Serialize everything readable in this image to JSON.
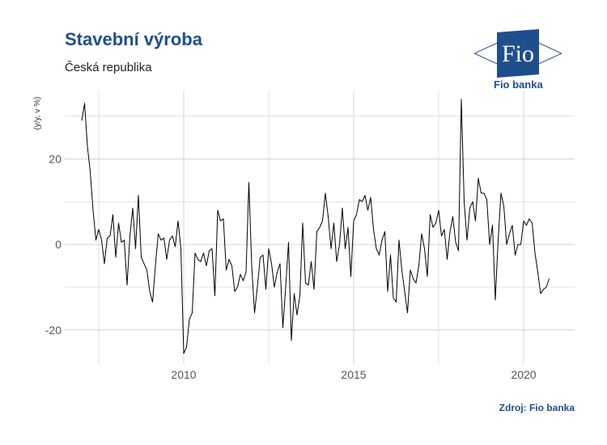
{
  "header": {
    "title": "Stavební výroba",
    "subtitle": "Česká republika"
  },
  "logo": {
    "mark_text": "Fio",
    "name": "Fio banka"
  },
  "footer": {
    "source": "Zdroj: Fio banka"
  },
  "colors": {
    "brand": "#1f4e8c",
    "line": "#000000",
    "grid": "#d4d4d4"
  },
  "chart_data": {
    "type": "line",
    "title": "Stavební výroba",
    "subtitle": "Česká republika",
    "ylabel": "(y/y, v %)",
    "xlabel": "",
    "x_ticks": [
      "2010",
      "2015",
      "2020"
    ],
    "y_ticks": [
      "-20",
      "0",
      "20"
    ],
    "xlim": [
      2006.5,
      2021.5
    ],
    "ylim": [
      -28,
      36
    ],
    "grid": true,
    "series": [
      {
        "x": [
          2007.0,
          2007.083,
          2007.167,
          2007.25,
          2007.333,
          2007.417,
          2007.5,
          2007.583,
          2007.667,
          2007.75,
          2007.833,
          2007.917,
          2008.0,
          2008.083,
          2008.167,
          2008.25,
          2008.333,
          2008.417,
          2008.5,
          2008.583,
          2008.667,
          2008.75,
          2008.833,
          2008.917,
          2009.0,
          2009.083,
          2009.167,
          2009.25,
          2009.333,
          2009.417,
          2009.5,
          2009.583,
          2009.667,
          2009.75,
          2009.833,
          2009.917,
          2010.0,
          2010.083,
          2010.167,
          2010.25,
          2010.333,
          2010.417,
          2010.5,
          2010.583,
          2010.667,
          2010.75,
          2010.833,
          2010.917,
          2011.0,
          2011.083,
          2011.167,
          2011.25,
          2011.333,
          2011.417,
          2011.5,
          2011.583,
          2011.667,
          2011.75,
          2011.833,
          2011.917,
          2012.0,
          2012.083,
          2012.167,
          2012.25,
          2012.333,
          2012.417,
          2012.5,
          2012.583,
          2012.667,
          2012.75,
          2012.833,
          2012.917,
          2013.0,
          2013.083,
          2013.167,
          2013.25,
          2013.333,
          2013.417,
          2013.5,
          2013.583,
          2013.667,
          2013.75,
          2013.833,
          2013.917,
          2014.0,
          2014.083,
          2014.167,
          2014.25,
          2014.333,
          2014.417,
          2014.5,
          2014.583,
          2014.667,
          2014.75,
          2014.833,
          2014.917,
          2015.0,
          2015.083,
          2015.167,
          2015.25,
          2015.333,
          2015.417,
          2015.5,
          2015.583,
          2015.667,
          2015.75,
          2015.833,
          2015.917,
          2016.0,
          2016.083,
          2016.167,
          2016.25,
          2016.333,
          2016.417,
          2016.5,
          2016.583,
          2016.667,
          2016.75,
          2016.833,
          2016.917,
          2017.0,
          2017.083,
          2017.167,
          2017.25,
          2017.333,
          2017.417,
          2017.5,
          2017.583,
          2017.667,
          2017.75,
          2017.833,
          2017.917,
          2018.0,
          2018.083,
          2018.167,
          2018.25,
          2018.333,
          2018.417,
          2018.5,
          2018.583,
          2018.667,
          2018.75,
          2018.833,
          2018.917,
          2019.0,
          2019.083,
          2019.167,
          2019.25,
          2019.333,
          2019.417,
          2019.5,
          2019.583,
          2019.667,
          2019.75,
          2019.833,
          2019.917,
          2020.0,
          2020.083,
          2020.167,
          2020.25,
          2020.333,
          2020.417,
          2020.5,
          2020.583,
          2020.667,
          2020.75
        ],
        "values": [
          29.0,
          33.0,
          23.0,
          17.0,
          8.0,
          1.0,
          3.5,
          1.0,
          -4.5,
          1.5,
          2.0,
          7.0,
          -3.0,
          5.0,
          0.5,
          1.0,
          -9.5,
          2.0,
          8.5,
          -1.0,
          11.5,
          -3.0,
          -4.5,
          -6.0,
          -11.0,
          -13.5,
          -5.0,
          2.5,
          1.0,
          1.5,
          -3.5,
          1.0,
          2.0,
          -0.5,
          5.5,
          -1.0,
          -25.5,
          -24.0,
          -17.5,
          -16.0,
          -2.0,
          -3.5,
          -4.0,
          -2.0,
          -5.0,
          -1.5,
          -1.0,
          -12.0,
          8.0,
          5.5,
          6.0,
          -6.0,
          -3.5,
          -5.0,
          -11.0,
          -10.0,
          -7.0,
          -8.5,
          -6.5,
          14.5,
          -5.0,
          -16.0,
          -10.0,
          -3.0,
          -2.5,
          -10.5,
          -1.0,
          -4.5,
          -10.0,
          -6.5,
          -4.5,
          -19.5,
          -10.0,
          0.5,
          -22.5,
          -11.5,
          -16.5,
          -12.0,
          5.0,
          -9.0,
          -9.5,
          -4.0,
          -10.5,
          3.0,
          4.0,
          5.5,
          12.0,
          6.5,
          -1.0,
          5.0,
          -4.0,
          0.0,
          8.5,
          -1.0,
          4.0,
          -7.5,
          5.5,
          7.0,
          10.5,
          10.0,
          11.5,
          8.0,
          11.0,
          3.5,
          -1.0,
          -2.5,
          1.0,
          3.0,
          -11.0,
          -2.5,
          -12.5,
          -13.5,
          1.0,
          -6.0,
          -11.0,
          -16.0,
          -6.0,
          -8.0,
          -9.0,
          -5.0,
          2.5,
          -1.0,
          -7.5,
          7.0,
          4.0,
          5.0,
          8.0,
          2.0,
          3.5,
          -3.5,
          3.0,
          6.5,
          0.5,
          -1.5,
          34.0,
          10.0,
          1.0,
          8.5,
          10.0,
          5.5,
          15.5,
          12.0,
          12.0,
          10.5,
          0.0,
          4.5,
          -13.0,
          1.0,
          12.0,
          9.0,
          0.0,
          2.5,
          4.5,
          -2.5,
          0.0,
          0.0,
          5.5,
          4.5,
          6.0,
          5.0,
          -2.0,
          -6.5,
          -11.5,
          -10.5,
          -10.0,
          -8.0
        ]
      }
    ]
  }
}
